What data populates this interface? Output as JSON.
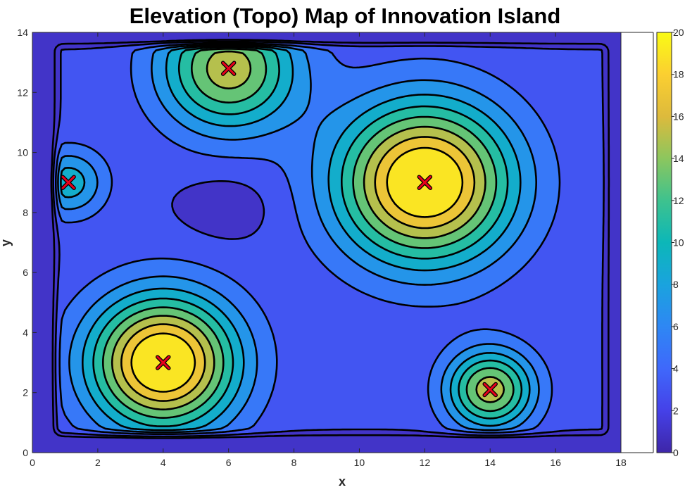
{
  "chart_data": {
    "type": "heatmap",
    "subtype": "filled-contour",
    "title": "Elevation (Topo) Map of Innovation Island",
    "xlabel": "x",
    "ylabel": "y",
    "xlim": [
      0,
      18
    ],
    "ylim": [
      0,
      14
    ],
    "x_ticks": [
      "0",
      "2",
      "4",
      "6",
      "8",
      "10",
      "12",
      "14",
      "16",
      "18"
    ],
    "y_ticks": [
      "0",
      "2",
      "4",
      "6",
      "8",
      "10",
      "12",
      "14"
    ],
    "colorbar": {
      "colormap": "parula",
      "range": [
        0,
        20
      ],
      "ticks": [
        "0",
        "2",
        "4",
        "6",
        "8",
        "10",
        "12",
        "14",
        "16",
        "18",
        "20"
      ]
    },
    "contour_levels": [
      2,
      4,
      6,
      8,
      10,
      12,
      14,
      16,
      18
    ],
    "island_extent": {
      "x": [
        0.5,
        17.8
      ],
      "y": [
        0.4,
        13.8
      ]
    },
    "peaks": [
      {
        "x": 4,
        "y": 3,
        "height": 20
      },
      {
        "x": 12,
        "y": 9,
        "height": 20
      },
      {
        "x": 14,
        "y": 2.1,
        "height": 14
      },
      {
        "x": 6,
        "y": 12.8,
        "height": 14
      },
      {
        "x": 1.1,
        "y": 9,
        "height": 8
      }
    ],
    "depression": {
      "x": 6,
      "y": 8.2,
      "height": 1
    },
    "marker_color": "#e8001c",
    "background_level": 1,
    "grid": false
  }
}
